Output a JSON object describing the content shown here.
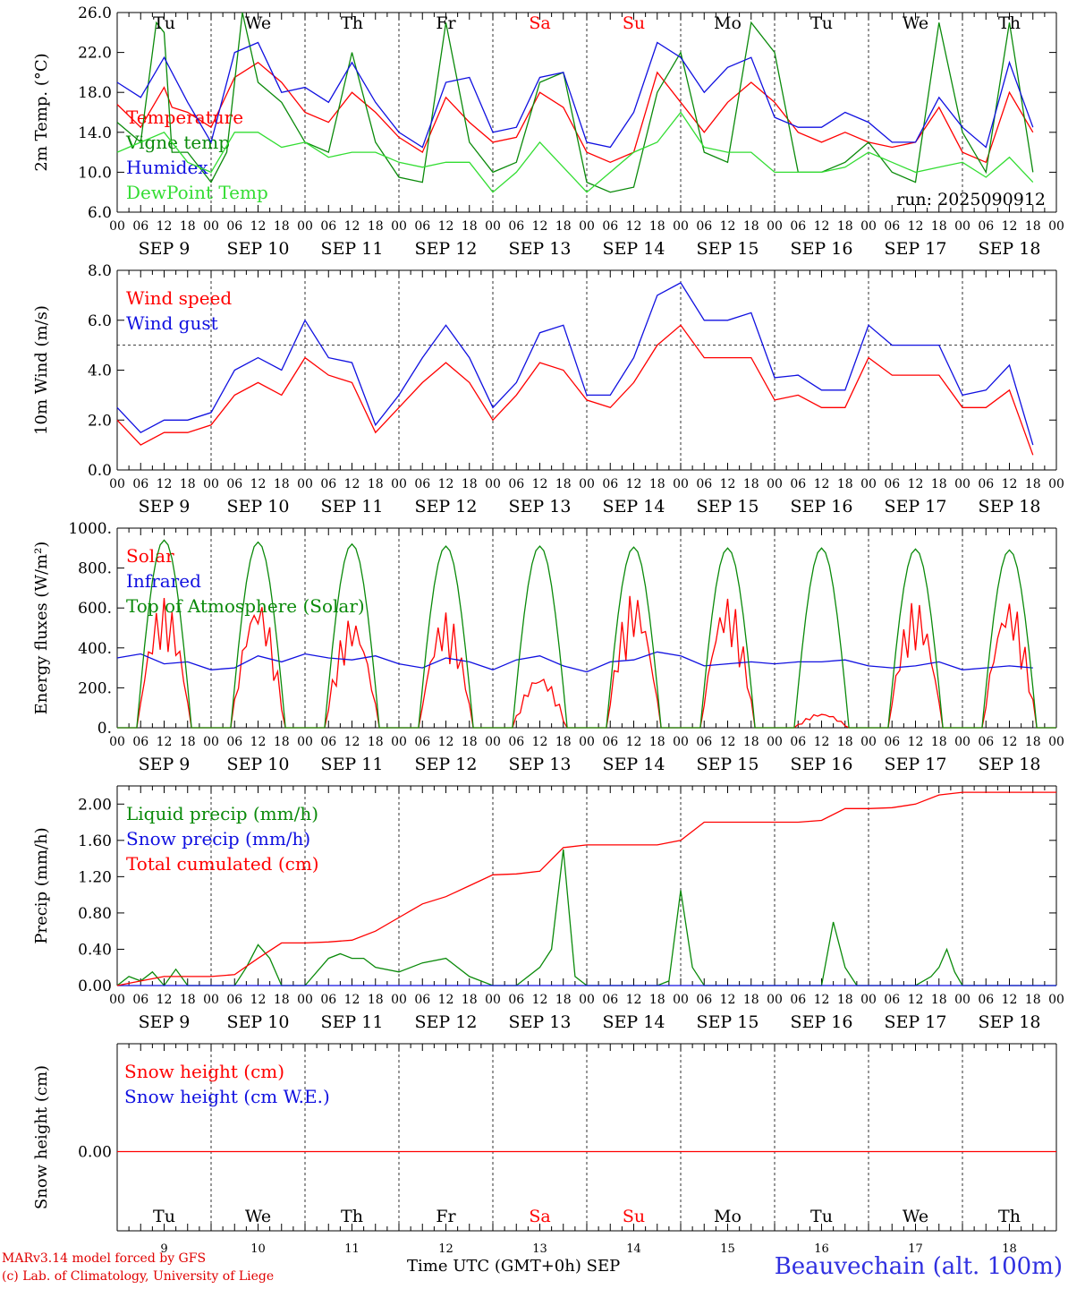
{
  "run_label": "run: 2025090912",
  "dates": [
    "SEP  9",
    "SEP 10",
    "SEP 11",
    "SEP 12",
    "SEP 13",
    "SEP 14",
    "SEP 15",
    "SEP 16",
    "SEP 17",
    "SEP 18"
  ],
  "weekdays": [
    "Tu",
    "We",
    "Th",
    "Fr",
    "Sa",
    "Su",
    "Mo",
    "Tu",
    "We",
    "Th"
  ],
  "weekend_days": [
    "Sa",
    "Su"
  ],
  "day_numbers": [
    "9",
    "10",
    "11",
    "12",
    "13",
    "14",
    "15",
    "16",
    "17",
    "18"
  ],
  "hour_ticks": [
    "00",
    "06",
    "12",
    "18"
  ],
  "xaxis_title": "Time UTC (GMT+0h)",
  "xaxis_month": "SEP",
  "footer": {
    "model": "MARv3.14 model forced by GFS",
    "lab": "(c) Lab. of Climatology, University of Liege",
    "station": "Beauvechain (alt. 100m)"
  },
  "colors": {
    "red": "#ff0000",
    "green": "#0a8a0a",
    "blue": "#1010e0",
    "lightgreen": "#33dd33"
  },
  "chart_data": [
    {
      "type": "line",
      "ylabel": "2m Temp. (°C)",
      "ylim": [
        6,
        26
      ],
      "yticks": [
        "6.0",
        "10.0",
        "14.0",
        "18.0",
        "22.0",
        "26.0"
      ],
      "x_unit": "hours since SEP 9 00 UTC",
      "series": [
        {
          "name": "Temperature",
          "color": "red",
          "x": [
            0,
            6,
            12,
            14,
            18,
            24,
            30,
            36,
            42,
            48,
            54,
            60,
            66,
            72,
            78,
            84,
            90,
            96,
            102,
            108,
            114,
            120,
            126,
            132,
            138,
            144,
            150,
            156,
            162,
            168,
            174,
            180,
            186,
            192,
            198,
            204,
            210,
            216,
            222,
            228,
            234
          ],
          "values": [
            16.8,
            14.5,
            18.5,
            16.5,
            16,
            14.5,
            19.5,
            21,
            19,
            16,
            15,
            18,
            16,
            13.5,
            12,
            17.5,
            15,
            13,
            13.5,
            18,
            16.5,
            12,
            11,
            12,
            20,
            17,
            14,
            17,
            19,
            17,
            14,
            13,
            14,
            13,
            12.5,
            13,
            16.5,
            12,
            11,
            18,
            14
          ]
        },
        {
          "name": "Vigne temp",
          "color": "green",
          "x": [
            0,
            6,
            10,
            12,
            14,
            18,
            24,
            28,
            32,
            36,
            42,
            48,
            54,
            60,
            66,
            72,
            78,
            84,
            90,
            96,
            102,
            108,
            114,
            120,
            126,
            132,
            138,
            144,
            150,
            156,
            162,
            168,
            174,
            180,
            186,
            192,
            198,
            204,
            210,
            216,
            222,
            228,
            234
          ],
          "values": [
            15,
            13,
            25,
            24,
            12,
            12,
            9,
            12,
            26,
            19,
            17,
            13,
            12,
            22,
            13,
            9.5,
            9,
            25,
            13,
            10,
            11,
            19,
            20,
            9,
            8,
            8.5,
            18,
            22,
            12,
            11,
            25,
            22,
            10,
            10,
            11,
            13,
            10,
            9,
            25,
            14,
            10,
            25,
            10
          ]
        },
        {
          "name": "Humidex",
          "color": "blue",
          "x": [
            0,
            6,
            12,
            18,
            24,
            30,
            36,
            42,
            48,
            54,
            60,
            66,
            72,
            78,
            84,
            90,
            96,
            102,
            108,
            114,
            120,
            126,
            132,
            138,
            144,
            150,
            156,
            162,
            168,
            174,
            180,
            186,
            192,
            198,
            204,
            210,
            216,
            222,
            228,
            234
          ],
          "values": [
            19,
            17.5,
            21.5,
            17,
            13,
            22,
            23,
            18,
            18.5,
            17,
            21,
            17,
            14,
            12.5,
            19,
            19.5,
            14,
            14.5,
            19.5,
            20,
            13,
            12.5,
            16,
            23,
            21.5,
            18,
            20.5,
            21.5,
            15.5,
            14.5,
            14.5,
            16,
            15,
            13,
            13,
            17.5,
            14.5,
            12.5,
            21,
            14.5
          ]
        },
        {
          "name": "DewPoint Temp",
          "color": "lightgreen",
          "x": [
            0,
            6,
            12,
            18,
            24,
            30,
            36,
            42,
            48,
            54,
            60,
            66,
            72,
            78,
            84,
            90,
            96,
            102,
            108,
            114,
            120,
            126,
            132,
            138,
            144,
            150,
            156,
            162,
            168,
            174,
            180,
            186,
            192,
            198,
            204,
            210,
            216,
            222,
            228,
            234
          ],
          "values": [
            12,
            13,
            14,
            11,
            10,
            14,
            14,
            12.5,
            13,
            11.5,
            12,
            12,
            11,
            10.5,
            11,
            11,
            8,
            10,
            13,
            10.5,
            8,
            10,
            12,
            13,
            16,
            12.5,
            12,
            12,
            10,
            10,
            10,
            10.5,
            12,
            11,
            10,
            10.5,
            11,
            9.5,
            11.5,
            9
          ]
        }
      ]
    },
    {
      "type": "line",
      "ylabel": "10m Wind (m/s)",
      "ylim": [
        0,
        8
      ],
      "yticks": [
        "0.0",
        "2.0",
        "4.0",
        "6.0",
        "8.0"
      ],
      "reference_line": 5,
      "series": [
        {
          "name": "Wind speed",
          "color": "red",
          "x": [
            0,
            6,
            12,
            18,
            24,
            30,
            36,
            42,
            48,
            54,
            60,
            66,
            72,
            78,
            84,
            90,
            96,
            102,
            108,
            114,
            120,
            126,
            132,
            138,
            144,
            150,
            156,
            162,
            168,
            174,
            180,
            186,
            192,
            198,
            204,
            210,
            216,
            222,
            228,
            234
          ],
          "values": [
            2,
            1,
            1.5,
            1.5,
            1.8,
            3,
            3.5,
            3,
            4.5,
            3.8,
            3.5,
            1.5,
            2.5,
            3.5,
            4.3,
            3.5,
            2,
            3,
            4.3,
            4,
            2.8,
            2.5,
            3.5,
            5,
            5.8,
            4.5,
            4.5,
            4.5,
            2.8,
            3,
            2.5,
            2.5,
            4.5,
            3.8,
            3.8,
            3.8,
            2.5,
            2.5,
            3.2,
            0.6
          ]
        },
        {
          "name": "Wind gust",
          "color": "blue",
          "x": [
            0,
            6,
            12,
            18,
            24,
            30,
            36,
            42,
            48,
            54,
            60,
            66,
            72,
            78,
            84,
            90,
            96,
            102,
            108,
            114,
            120,
            126,
            132,
            138,
            144,
            150,
            156,
            162,
            168,
            174,
            180,
            186,
            192,
            198,
            204,
            210,
            216,
            222,
            228,
            234
          ],
          "values": [
            2.5,
            1.5,
            2,
            2,
            2.3,
            4,
            4.5,
            4,
            6,
            4.5,
            4.3,
            1.8,
            3,
            4.5,
            5.8,
            4.5,
            2.5,
            3.5,
            5.5,
            5.8,
            3,
            3,
            4.5,
            7,
            7.5,
            6,
            6,
            6.3,
            3.7,
            3.8,
            3.2,
            3.2,
            5.8,
            5,
            5,
            5,
            3,
            3.2,
            4.2,
            1
          ]
        }
      ]
    },
    {
      "type": "line",
      "ylabel": "Energy fluxes (W/m²)",
      "ylim": [
        0,
        1000
      ],
      "yticks": [
        "0.",
        "200.",
        "400.",
        "600.",
        "800.",
        "1000."
      ],
      "series": [
        {
          "name": "Solar",
          "color": "red",
          "peaks": [
            650,
            650,
            560,
            580,
            270,
            680,
            660,
            75,
            640,
            650
          ]
        },
        {
          "name": "Infrared",
          "color": "blue",
          "x": [
            0,
            6,
            12,
            18,
            24,
            30,
            36,
            42,
            48,
            54,
            60,
            66,
            72,
            78,
            84,
            90,
            96,
            102,
            108,
            114,
            120,
            126,
            132,
            138,
            144,
            150,
            156,
            162,
            168,
            174,
            180,
            186,
            192,
            198,
            204,
            210,
            216,
            222,
            228,
            234
          ],
          "values": [
            350,
            370,
            320,
            330,
            290,
            300,
            360,
            330,
            370,
            350,
            340,
            360,
            320,
            300,
            350,
            330,
            290,
            340,
            360,
            310,
            280,
            330,
            340,
            380,
            360,
            310,
            320,
            330,
            320,
            330,
            330,
            340,
            310,
            300,
            310,
            330,
            290,
            300,
            310,
            300
          ]
        },
        {
          "name": "Top of Atmosphere (Solar)",
          "color": "green",
          "peaks": [
            940,
            930,
            920,
            910,
            910,
            905,
            900,
            900,
            895,
            890
          ]
        }
      ]
    },
    {
      "type": "line",
      "ylabel": "Precip (mm/h)",
      "ylim": [
        0,
        2.2
      ],
      "yticks": [
        "0.00",
        "0.40",
        "0.80",
        "1.20",
        "1.60",
        "2.00"
      ],
      "series": [
        {
          "name": "Liquid precip (mm/h)",
          "color": "green",
          "x": [
            0,
            3,
            6,
            9,
            12,
            15,
            18,
            21,
            24,
            30,
            33,
            36,
            39,
            42,
            48,
            54,
            57,
            60,
            63,
            66,
            72,
            78,
            84,
            90,
            96,
            102,
            108,
            111,
            114,
            117,
            120,
            138,
            141,
            144,
            147,
            150,
            172,
            180,
            183,
            186,
            189,
            192,
            204,
            208,
            210,
            212,
            214,
            216,
            240
          ],
          "values": [
            0,
            0.1,
            0.05,
            0.15,
            0,
            0.18,
            0,
            0,
            0,
            0,
            0.2,
            0.45,
            0.3,
            0,
            0,
            0.3,
            0.35,
            0.3,
            0.3,
            0.2,
            0.15,
            0.25,
            0.3,
            0.1,
            0,
            0,
            0.2,
            0.4,
            1.5,
            0.1,
            0,
            0,
            0.05,
            1.05,
            0.2,
            0,
            0,
            0,
            0.7,
            0.2,
            0,
            0,
            0,
            0.1,
            0.2,
            0.4,
            0.15,
            0,
            0
          ]
        },
        {
          "name": "Snow precip (mm/h)",
          "color": "blue",
          "x": [
            0,
            240
          ],
          "values": [
            0,
            0
          ]
        },
        {
          "name": "Total cumulated (cm)",
          "color": "red",
          "x": [
            0,
            6,
            12,
            18,
            24,
            30,
            36,
            42,
            48,
            54,
            60,
            66,
            72,
            78,
            84,
            90,
            96,
            102,
            108,
            114,
            120,
            126,
            132,
            138,
            144,
            150,
            156,
            162,
            168,
            174,
            180,
            186,
            192,
            198,
            204,
            210,
            216,
            222,
            228,
            234,
            240
          ],
          "values": [
            0,
            0.05,
            0.1,
            0.1,
            0.1,
            0.12,
            0.3,
            0.47,
            0.47,
            0.48,
            0.5,
            0.6,
            0.75,
            0.9,
            0.98,
            1.1,
            1.22,
            1.23,
            1.26,
            1.52,
            1.55,
            1.55,
            1.55,
            1.55,
            1.6,
            1.8,
            1.8,
            1.8,
            1.8,
            1.8,
            1.82,
            1.95,
            1.95,
            1.96,
            2,
            2.1,
            2.13,
            2.13,
            2.13,
            2.13,
            2.13
          ]
        }
      ]
    },
    {
      "type": "line",
      "ylabel": "Snow height (cm)",
      "yticks": [
        "0.00"
      ],
      "series": [
        {
          "name": "Snow height (cm)",
          "color": "red",
          "x": [
            0,
            240
          ],
          "values": [
            0,
            0
          ]
        },
        {
          "name": "Snow height (cm W.E.)",
          "color": "blue",
          "x": [
            0,
            240
          ],
          "values": [
            0,
            0
          ]
        }
      ]
    }
  ]
}
